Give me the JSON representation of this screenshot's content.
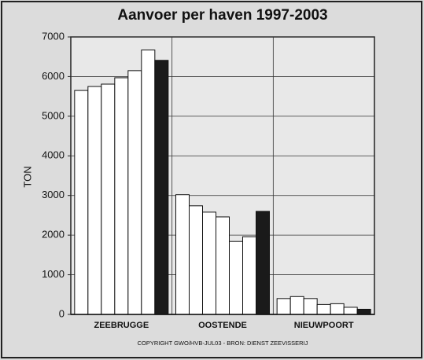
{
  "chart_data": {
    "type": "bar",
    "title": "Aanvoer per haven 1997-2003",
    "ylabel": "TON",
    "footnote": "COPYRIGHT GWO/HVB-JUL03  -  BRON: DIENST ZEEVISSERIJ",
    "categories": [
      "ZEEBRUGGE",
      "OOSTENDE",
      "NIEUWPOORT"
    ],
    "series": [
      {
        "color": "#ffffff",
        "values": [
          5650,
          3020,
          400
        ]
      },
      {
        "color": "#ffffff",
        "values": [
          5750,
          2740,
          450
        ]
      },
      {
        "color": "#ffffff",
        "values": [
          5810,
          2580,
          400
        ]
      },
      {
        "color": "#ffffff",
        "values": [
          5970,
          2460,
          250
        ]
      },
      {
        "color": "#ffffff",
        "values": [
          6150,
          1840,
          270
        ]
      },
      {
        "color": "#ffffff",
        "values": [
          6670,
          1960,
          180
        ]
      },
      {
        "color": "#1a1a1a",
        "values": [
          6410,
          2600,
          130
        ]
      }
    ],
    "ylim": [
      0,
      7000
    ],
    "yticks": [
      0,
      1000,
      2000,
      3000,
      4000,
      5000,
      6000,
      7000
    ],
    "grid": true
  }
}
